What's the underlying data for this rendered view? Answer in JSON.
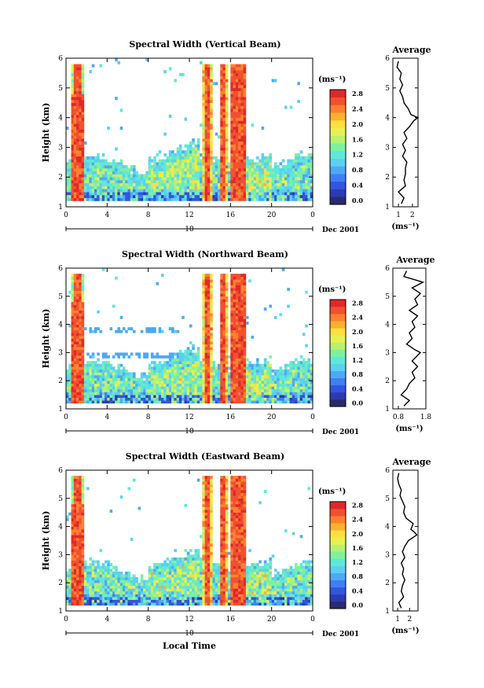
{
  "figure": {
    "xlabel": "Local Time",
    "date_label": "Dec 2001",
    "day_label": "10"
  },
  "colorbar": {
    "unit_label": "(ms⁻¹)",
    "tick_labels": [
      "0.0",
      "0.4",
      "0.8",
      "1.2",
      "1.6",
      "2.0",
      "2.4",
      "2.8"
    ],
    "colors": [
      "#2a2a6e",
      "#2b3bb0",
      "#3355dd",
      "#3f7ff0",
      "#4fa8f5",
      "#5cd0f0",
      "#5fe8d8",
      "#7ff0a0",
      "#b8f070",
      "#e8f050",
      "#ffe040",
      "#ffb030",
      "#ff8030",
      "#f05030",
      "#e02828"
    ]
  },
  "chart_data": [
    {
      "type": "heatmap",
      "title": "Spectral Width (Vertical Beam)",
      "ylabel": "Height (km)",
      "xlim": [
        0,
        24
      ],
      "ylim": [
        1,
        6
      ],
      "x_ticks": [
        "0",
        "4",
        "8",
        "12",
        "16",
        "20",
        "0"
      ],
      "y_ticks": [
        "1",
        "2",
        "3",
        "4",
        "5",
        "6"
      ],
      "average": {
        "title": "Average",
        "xlabel": "(ms⁻¹)",
        "x_ticks": [
          "1",
          "2"
        ],
        "xlim": [
          0.6,
          2.4
        ],
        "height": [
          1.1,
          1.3,
          1.5,
          1.7,
          1.9,
          2.1,
          2.3,
          2.5,
          2.7,
          2.9,
          3.1,
          3.3,
          3.5,
          3.7,
          3.9,
          4.0,
          4.1,
          4.3,
          4.5,
          4.7,
          4.9,
          5.1,
          5.3,
          5.5,
          5.7,
          5.9
        ],
        "value": [
          1.2,
          1.4,
          1.0,
          1.5,
          1.4,
          1.5,
          1.5,
          1.6,
          1.3,
          1.5,
          1.3,
          1.6,
          1.4,
          1.8,
          2.1,
          2.4,
          1.9,
          1.7,
          1.4,
          1.3,
          1.1,
          1.3,
          1.1,
          1.2,
          0.9,
          1.0
        ]
      }
    },
    {
      "type": "heatmap",
      "title": "Spectral Width (Northward Beam)",
      "ylabel": "Height (km)",
      "xlim": [
        0,
        24
      ],
      "ylim": [
        1,
        6
      ],
      "x_ticks": [
        "0",
        "4",
        "8",
        "12",
        "16",
        "20",
        "0"
      ],
      "y_ticks": [
        "1",
        "2",
        "3",
        "4",
        "5",
        "6"
      ],
      "average": {
        "title": "Average",
        "xlabel": "(ms⁻¹)",
        "x_ticks": [
          "0.8",
          "1.8"
        ],
        "xlim": [
          0.6,
          1.8
        ],
        "height": [
          1.1,
          1.3,
          1.5,
          1.7,
          1.9,
          2.1,
          2.3,
          2.5,
          2.7,
          2.9,
          3.0,
          3.1,
          3.3,
          3.5,
          3.7,
          3.9,
          4.1,
          4.3,
          4.5,
          4.7,
          4.9,
          5.1,
          5.3,
          5.5,
          5.7,
          5.9
        ],
        "value": [
          1.0,
          1.2,
          0.9,
          1.1,
          1.2,
          1.4,
          1.3,
          1.5,
          1.3,
          1.5,
          1.6,
          1.4,
          1.1,
          1.3,
          1.2,
          1.4,
          1.3,
          1.5,
          1.2,
          1.5,
          1.4,
          1.6,
          1.3,
          1.7,
          1.0,
          1.1
        ]
      }
    },
    {
      "type": "heatmap",
      "title": "Spectral Width (Eastward Beam)",
      "ylabel": "Height (km)",
      "xlim": [
        0,
        24
      ],
      "ylim": [
        1,
        6
      ],
      "x_ticks": [
        "0",
        "4",
        "8",
        "12",
        "16",
        "20",
        "0"
      ],
      "y_ticks": [
        "1",
        "2",
        "3",
        "4",
        "5",
        "6"
      ],
      "average": {
        "title": "Average",
        "xlabel": "(ms⁻¹)",
        "x_ticks": [
          "1",
          "2"
        ],
        "xlim": [
          0.6,
          2.7
        ],
        "height": [
          1.1,
          1.3,
          1.5,
          1.7,
          1.9,
          2.1,
          2.3,
          2.5,
          2.7,
          2.9,
          3.1,
          3.3,
          3.5,
          3.7,
          3.8,
          3.9,
          4.1,
          4.3,
          4.5,
          4.7,
          4.9,
          5.1,
          5.3,
          5.5,
          5.7,
          5.9
        ],
        "value": [
          1.3,
          1.1,
          1.5,
          1.3,
          1.4,
          1.6,
          1.4,
          1.5,
          1.3,
          1.6,
          1.4,
          1.6,
          1.9,
          2.6,
          2.4,
          2.1,
          2.3,
          1.7,
          1.5,
          1.6,
          1.4,
          1.2,
          1.3,
          1.1,
          1.0,
          1.1
        ]
      }
    }
  ]
}
